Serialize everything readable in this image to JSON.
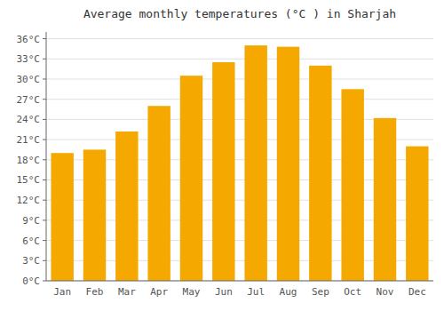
{
  "chart_data": {
    "type": "bar",
    "title": "Average monthly temperatures (°C ) in Sharjah",
    "categories": [
      "Jan",
      "Feb",
      "Mar",
      "Apr",
      "May",
      "Jun",
      "Jul",
      "Aug",
      "Sep",
      "Oct",
      "Nov",
      "Dec"
    ],
    "values": [
      19.0,
      19.5,
      22.2,
      26.0,
      30.5,
      32.5,
      35.0,
      34.8,
      32.0,
      28.5,
      24.2,
      20.0
    ],
    "color": "#F5A800",
    "ylim": [
      0,
      37
    ],
    "yticks": [
      {
        "value": 0,
        "label": "0°C"
      },
      {
        "value": 3,
        "label": "3°C"
      },
      {
        "value": 6,
        "label": "6°C"
      },
      {
        "value": 9,
        "label": "9°C"
      },
      {
        "value": 12,
        "label": "12°C"
      },
      {
        "value": 15,
        "label": "15°C"
      },
      {
        "value": 18,
        "label": "18°C"
      },
      {
        "value": 21,
        "label": "21°C"
      },
      {
        "value": 24,
        "label": "24°C"
      },
      {
        "value": 27,
        "label": "27°C"
      },
      {
        "value": 30,
        "label": "30°C"
      },
      {
        "value": 33,
        "label": "33°C"
      },
      {
        "value": 36,
        "label": "36°C"
      }
    ],
    "grid": true
  }
}
